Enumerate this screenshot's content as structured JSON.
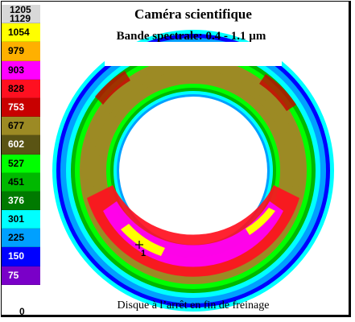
{
  "header": {
    "title": "Caméra scientifique",
    "subtitle": "Bande spectrale: 0.4 - 1.1 µm"
  },
  "caption": "Disque à l’arrêt en fin de freinage",
  "scale": {
    "top_values": [
      "1205",
      "1129"
    ],
    "bands": [
      {
        "label": "1054",
        "color": "#ffff00",
        "text": "#000000"
      },
      {
        "label": "979",
        "color": "#ffb000",
        "text": "#000000"
      },
      {
        "label": "903",
        "color": "#ff00ff",
        "text": "#000000"
      },
      {
        "label": "828",
        "color": "#ff1020",
        "text": "#000000"
      },
      {
        "label": "753",
        "color": "#c80000",
        "text": "#ffffff"
      },
      {
        "label": "677",
        "color": "#9c8a24",
        "text": "#000000"
      },
      {
        "label": "602",
        "color": "#5a5414",
        "text": "#ffffff"
      },
      {
        "label": "527",
        "color": "#00ff00",
        "text": "#000000"
      },
      {
        "label": "451",
        "color": "#00b800",
        "text": "#000000"
      },
      {
        "label": "376",
        "color": "#007a00",
        "text": "#ffffff"
      },
      {
        "label": "301",
        "color": "#00ffff",
        "text": "#000000"
      },
      {
        "label": "225",
        "color": "#00a0ff",
        "text": "#000000"
      },
      {
        "label": "150",
        "color": "#0000ff",
        "text": "#ffffff"
      },
      {
        "label": "75",
        "color": "#7a00c8",
        "text": "#ffffff"
      }
    ],
    "bottom_value": "0",
    "top_color": "#d8d8d8"
  },
  "marker": {
    "label": "1"
  }
}
